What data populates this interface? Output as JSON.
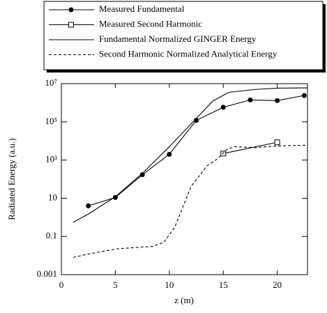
{
  "chart_data": {
    "type": "line",
    "xlabel": "z (m)",
    "ylabel": "Radiated Energy (a.u.)",
    "xlim": [
      0,
      22.8
    ],
    "xticks": [
      0,
      5,
      10,
      15,
      20
    ],
    "ylim": [
      0.001,
      10000000
    ],
    "log_y": true,
    "yticks": [
      0.001,
      0.1,
      10,
      {
        "value": 1000,
        "label": "10³"
      },
      {
        "value": 100000,
        "label": "10⁵"
      },
      {
        "value": 10000000,
        "label": "10⁷"
      }
    ],
    "legend": "top",
    "series": [
      {
        "name": "Measured Fundamental",
        "color": "#000000",
        "marker": "circle",
        "dash": false,
        "x": [
          2.5,
          5,
          7.5,
          10,
          12.5,
          15,
          17.5,
          20,
          22.5
        ],
        "values": [
          4,
          11,
          170,
          2000,
          120000,
          580000,
          1400000,
          1300000,
          2400000
        ]
      },
      {
        "name": "Measured Second Harmonic",
        "color": "#000000",
        "marker": "square",
        "dash": false,
        "x": [
          15,
          20
        ],
        "values": [
          2200,
          8500
        ]
      },
      {
        "name": "Fundamental Normalized GINGER Energy",
        "color": "#000000",
        "marker": null,
        "dash": false,
        "x": [
          1.1,
          2.5,
          5,
          7.5,
          10,
          12.5,
          14,
          15.5,
          18,
          20,
          22.8
        ],
        "values": [
          0.55,
          1.5,
          12,
          200,
          5000,
          150000,
          1200000,
          3500000,
          5000000,
          5800000,
          6000000
        ]
      },
      {
        "name": "Second Harmonic Normalized Analytical Energy",
        "color": "#000000",
        "marker": null,
        "dash": true,
        "x": [
          1.1,
          2.5,
          5,
          7.5,
          8.5,
          9.5,
          10.5,
          12,
          13.5,
          14.5,
          15.3,
          16,
          18,
          20,
          22.8
        ],
        "values": [
          0.008,
          0.012,
          0.022,
          0.028,
          0.03,
          0.05,
          0.3,
          40,
          500,
          1200,
          3500,
          5000,
          4500,
          5500,
          6000
        ]
      }
    ]
  }
}
